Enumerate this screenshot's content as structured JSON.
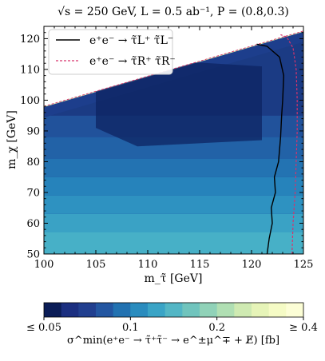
{
  "chart_data": {
    "type": "heatmap",
    "title": "√s = 250 GeV, L = 0.5 ab⁻¹, P = (0.8,0.3)",
    "xlabel": "m_τ̃ [GeV]",
    "ylabel": "m_χ [GeV]",
    "xlim": [
      100,
      125
    ],
    "ylim": [
      50,
      124
    ],
    "x_ticks": [
      100,
      105,
      110,
      115,
      120,
      125
    ],
    "y_ticks": [
      50,
      60,
      70,
      80,
      90,
      100,
      110,
      120
    ],
    "x_tick_labels": [
      "100",
      "105",
      "110",
      "115",
      "120",
      "125"
    ],
    "y_tick_labels": [
      "50",
      "60",
      "70",
      "80",
      "90",
      "100",
      "110",
      "120"
    ],
    "kinematic_boundary": {
      "points": [
        [
          100,
          98
        ],
        [
          125,
          122.5
        ]
      ],
      "fill_above": "#ffffff"
    },
    "series": [
      {
        "name": "e⁺e⁻ → τ̃L⁺ τ̃L⁻",
        "style": "solid",
        "color": "#000000",
        "points": [
          [
            121.5,
            50
          ],
          [
            121.7,
            55
          ],
          [
            122.0,
            60
          ],
          [
            121.9,
            65
          ],
          [
            122.3,
            70
          ],
          [
            122.2,
            75
          ],
          [
            122.6,
            80
          ],
          [
            122.8,
            88
          ],
          [
            122.9,
            95
          ],
          [
            123.0,
            100
          ],
          [
            123.1,
            108
          ],
          [
            122.7,
            114
          ],
          [
            121.5,
            117.5
          ],
          [
            120.5,
            118.2
          ]
        ]
      },
      {
        "name": "e⁺e⁻ → τ̃R⁺ τ̃R⁻",
        "style": "dashed",
        "color": "#d6336c",
        "points": [
          [
            123.9,
            50
          ],
          [
            124.0,
            60
          ],
          [
            124.2,
            70
          ],
          [
            124.3,
            80
          ],
          [
            124.4,
            90
          ],
          [
            124.4,
            100
          ],
          [
            124.3,
            110
          ],
          [
            124.0,
            117
          ],
          [
            123.4,
            120.5
          ],
          [
            122.8,
            121.3
          ]
        ]
      }
    ],
    "legend": {
      "placement": "top-left"
    },
    "colorbar": {
      "label": "σ^min(e⁺e⁻ → τ̃⁺τ̃⁻ → e^±μ^∓ + E̸) [fb]",
      "ticks": [
        0.05,
        0.1,
        0.2,
        0.4
      ],
      "tick_labels": [
        "≤ 0.05",
        "0.1",
        "0.2",
        "≥ 0.4"
      ],
      "scale": "log",
      "colors": [
        "#0b1d57",
        "#1b2f80",
        "#213f8f",
        "#2356a1",
        "#2272b1",
        "#2a8cbe",
        "#3aa4c6",
        "#53b6c5",
        "#70c4bd",
        "#90d2b8",
        "#b0dfb3",
        "#cfeab2",
        "#e6f4b8",
        "#f5fbc5",
        "#fcfed6"
      ]
    },
    "contour_levels": [
      {
        "value": 0.4,
        "min_distance": 3.6,
        "color": "#d7eeb3"
      },
      {
        "value": 0.3,
        "min_distance": 3.1,
        "color": "#b9e2b4"
      },
      {
        "value": 0.22,
        "min_distance": 2.5,
        "color": "#8dd1bb"
      },
      {
        "value": 0.16,
        "min_distance": 2.0,
        "color": "#5fbcc3"
      },
      {
        "value": 0.12,
        "min_distance": 1.5,
        "color": "#3a9fc4"
      },
      {
        "value": 0.09,
        "min_distance": 1.0,
        "color": "#2780b8"
      },
      {
        "value": 0.07,
        "min_distance": 0.6,
        "color": "#2262a6"
      },
      {
        "value": 0.06,
        "min_distance": 0.25,
        "color": "#1d3e8c"
      }
    ],
    "background_color": "#dff2b2",
    "mass_band_colors": [
      {
        "y_range": [
          50,
          57
        ],
        "color": "#47b0c7"
      },
      {
        "y_range": [
          57,
          63
        ],
        "color": "#3aa2c5"
      },
      {
        "y_range": [
          63,
          69
        ],
        "color": "#2e92c1"
      },
      {
        "y_range": [
          69,
          75
        ],
        "color": "#2683bb"
      },
      {
        "y_range": [
          75,
          81
        ],
        "color": "#2373b2"
      },
      {
        "y_range": [
          81,
          88
        ],
        "color": "#2262a7"
      },
      {
        "y_range": [
          88,
          95
        ],
        "color": "#21529b"
      },
      {
        "y_range": [
          95,
          124
        ],
        "color": "#1b3b84"
      }
    ],
    "dark_core": {
      "color": "#0e2462",
      "x_range": [
        105,
        121
      ],
      "y_range": [
        85,
        113
      ]
    }
  }
}
